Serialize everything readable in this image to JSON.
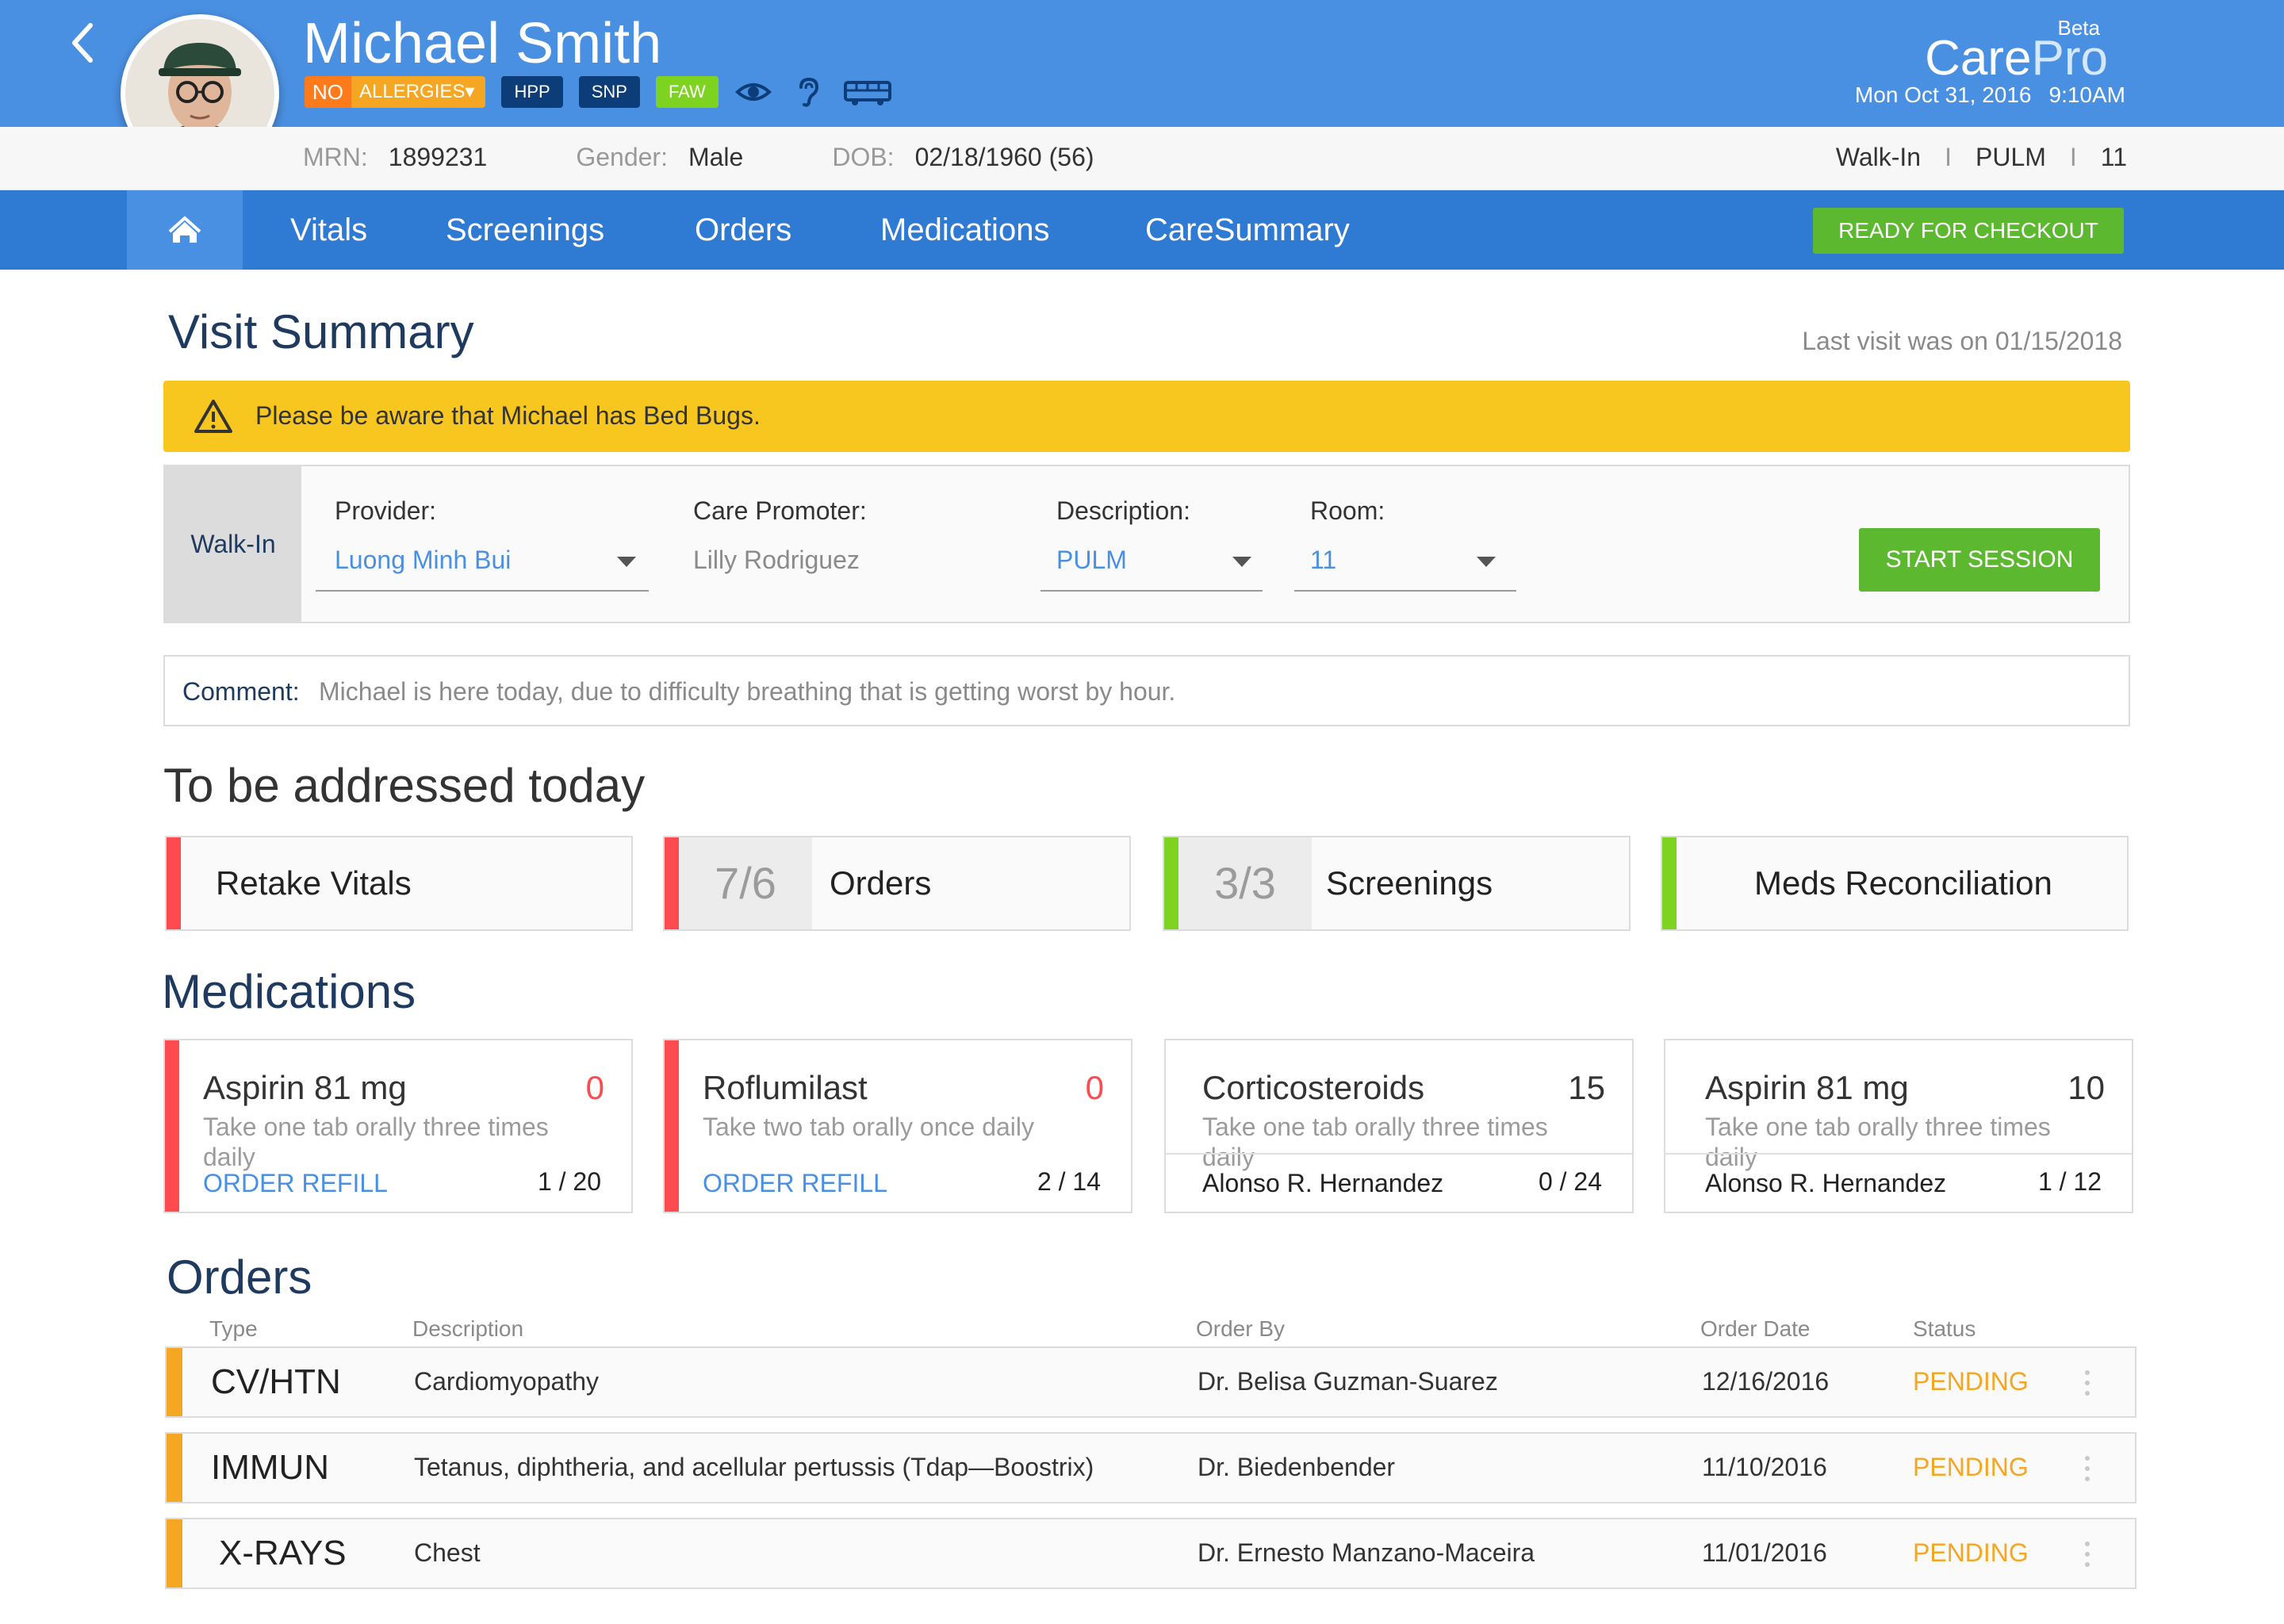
{
  "patient": {
    "name": "Michael Smith",
    "allergy_no": "NO",
    "allergy_label": "ALLERGIES▾",
    "tags": [
      "HPP",
      "SNP",
      "FAW"
    ],
    "mrn_label": "MRN:",
    "mrn": "1899231",
    "gender_label": "Gender:",
    "gender": "Male",
    "dob_label": "DOB:",
    "dob": "02/18/1960 (56)"
  },
  "brand": {
    "beta": "Beta",
    "care": "Care",
    "pro": "Pro",
    "date": "Mon Oct 31, 2016",
    "time": "9:10AM"
  },
  "visit_info": {
    "type": "Walk-In",
    "sep": "I",
    "department": "PULM",
    "room": "11"
  },
  "nav": {
    "items": [
      "Vitals",
      "Screenings",
      "Orders",
      "Medications",
      "CareSummary"
    ],
    "checkout": "READY FOR CHECKOUT"
  },
  "visit_summary": {
    "title": "Visit Summary",
    "last_visit": "Last visit was on 01/15/2018",
    "alert": "Please be aware that Michael has Bed Bugs.",
    "visit_type": "Walk-In",
    "provider_label": "Provider:",
    "provider": "Luong Minh Bui",
    "promoter_label": "Care Promoter:",
    "promoter": "Lilly Rodriguez",
    "description_label": "Description:",
    "description": "PULM",
    "room_label": "Room:",
    "room": "11",
    "start": "START SESSION",
    "comment_label": "Comment:",
    "comment": "Michael is here today, due to difficulty breathing that is getting worst by hour."
  },
  "today": {
    "title": "To be addressed today",
    "cards": [
      {
        "count": "",
        "title": "Retake Vitals",
        "status_color": "#ff4a4f"
      },
      {
        "count": "7/6",
        "title": "Orders",
        "status_color": "#ff4a4f"
      },
      {
        "count": "3/3",
        "title": "Screenings",
        "status_color": "#7ed321"
      },
      {
        "count": "",
        "title": "Meds Reconciliation",
        "status_color": "#7ed321"
      }
    ]
  },
  "medications": {
    "title": "Medications",
    "items": [
      {
        "name": "Aspirin 81 mg",
        "qty": "0",
        "instructions": "Take one tab orally three times daily",
        "action": "ORDER REFILL",
        "fraction": "1 / 20"
      },
      {
        "name": "Roflumilast",
        "qty": "0",
        "instructions": "Take two tab orally once daily",
        "action": "ORDER REFILL",
        "fraction": "2 / 14"
      },
      {
        "name": "Corticosteroids",
        "qty": "15",
        "instructions": "Take one tab orally three times daily",
        "prescriber": "Alonso R. Hernandez",
        "fraction": "0 / 24"
      },
      {
        "name": "Aspirin 81 mg",
        "qty": "10",
        "instructions": "Take one tab orally three times daily",
        "prescriber": "Alonso R. Hernandez",
        "fraction": "1 / 12"
      }
    ]
  },
  "orders": {
    "title": "Orders",
    "columns": [
      "Type",
      "Description",
      "Order By",
      "Order Date",
      "Status"
    ],
    "rows": [
      {
        "type": "CV/HTN",
        "description": "Cardiomyopathy",
        "order_by": "Dr. Belisa Guzman-Suarez",
        "date": "12/16/2016",
        "status": "PENDING"
      },
      {
        "type": "IMMUN",
        "description": "Tetanus, diphtheria, and acellular pertussis (Tdap—Boostrix)",
        "order_by": "Dr. Biedenbender",
        "date": "11/10/2016",
        "status": "PENDING"
      },
      {
        "type": "X-RAYS",
        "description": "Chest",
        "order_by": "Dr. Ernesto Manzano-Maceira",
        "date": "11/01/2016",
        "status": "PENDING"
      }
    ]
  },
  "colors": {
    "header": "#4a90e2",
    "nav": "#2f7bd3",
    "alert": "#f8c71f",
    "success": "#5cb82f",
    "pending": "#f5a623",
    "danger": "#ff4a4f"
  }
}
